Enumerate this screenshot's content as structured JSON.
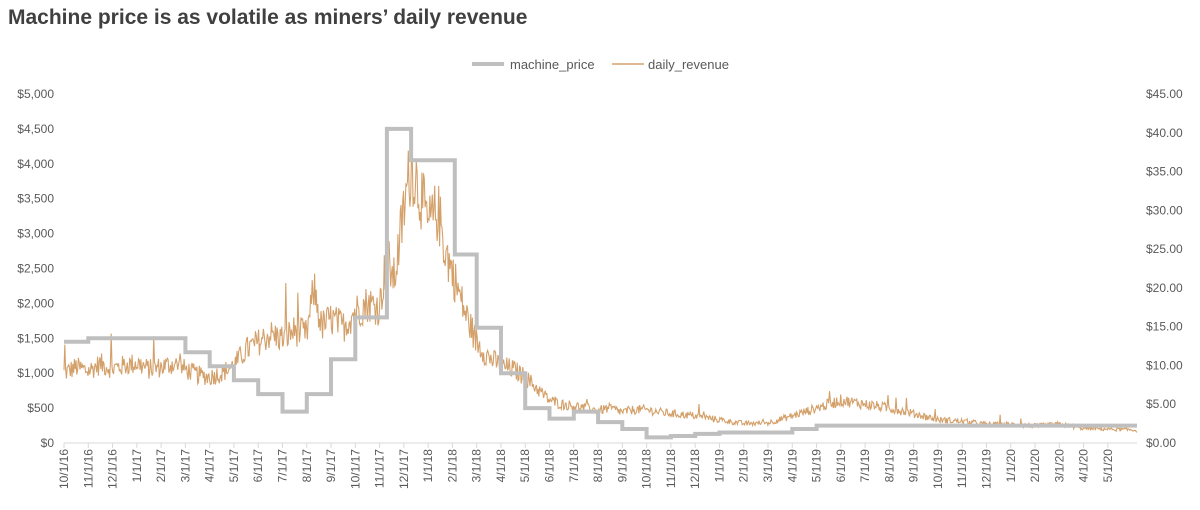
{
  "chart_data": {
    "type": "line",
    "title": "Machine price is as volatile as miners’ daily revenue",
    "legend_position": "top-center",
    "y_left": {
      "ylim": [
        0,
        5000
      ],
      "ticks": [
        0,
        500,
        1000,
        1500,
        2000,
        2500,
        3000,
        3500,
        4000,
        4500,
        5000
      ],
      "tick_labels": [
        "$0",
        "$500",
        "$1,000",
        "$1,500",
        "$2,000",
        "$2,500",
        "$3,000",
        "$3,500",
        "$4,000",
        "$4,500",
        "$5,000"
      ]
    },
    "y_right": {
      "ylim": [
        0,
        45
      ],
      "ticks": [
        0,
        5,
        10,
        15,
        20,
        25,
        30,
        35,
        40,
        45
      ],
      "tick_labels": [
        "$0.00",
        "$5.00",
        "$10.00",
        "$15.00",
        "$20.00",
        "$25.00",
        "$30.00",
        "$35.00",
        "$40.00",
        "$45.00"
      ]
    },
    "x_tick_labels": [
      "10/1/16",
      "11/1/16",
      "12/1/16",
      "1/1/17",
      "2/1/17",
      "3/1/17",
      "4/1/17",
      "5/1/17",
      "6/1/17",
      "7/1/17",
      "8/1/17",
      "9/1/17",
      "10/1/17",
      "11/1/17",
      "12/1/17",
      "1/1/18",
      "2/1/18",
      "3/1/18",
      "4/1/18",
      "5/1/18",
      "6/1/18",
      "7/1/18",
      "8/1/18",
      "9/1/18",
      "10/1/18",
      "11/1/18",
      "12/1/18",
      "1/1/19",
      "2/1/19",
      "3/1/19",
      "4/1/19",
      "5/1/19",
      "6/1/19",
      "7/1/19",
      "8/1/19",
      "9/1/19",
      "10/1/19",
      "11/1/19",
      "12/1/19",
      "1/1/20",
      "2/1/20",
      "3/1/20",
      "4/1/20",
      "5/1/20"
    ],
    "x_range_months": [
      0,
      44.2
    ],
    "series": [
      {
        "name": "machine_price",
        "axis": "left",
        "color": "#bfbfbf",
        "step": true,
        "points": [
          [
            0,
            1450
          ],
          [
            1,
            1500
          ],
          [
            5,
            1300
          ],
          [
            6,
            1100
          ],
          [
            7,
            900
          ],
          [
            8,
            700
          ],
          [
            9,
            450
          ],
          [
            10,
            700
          ],
          [
            11,
            1200
          ],
          [
            12,
            1800
          ],
          [
            13.3,
            4500
          ],
          [
            14.3,
            4050
          ],
          [
            16.1,
            2700
          ],
          [
            17,
            1650
          ],
          [
            18,
            1000
          ],
          [
            19,
            500
          ],
          [
            20,
            350
          ],
          [
            21,
            450
          ],
          [
            22,
            300
          ],
          [
            23,
            200
          ],
          [
            24,
            80
          ],
          [
            25,
            100
          ],
          [
            26,
            130
          ],
          [
            27,
            150
          ],
          [
            29,
            150
          ],
          [
            30,
            200
          ],
          [
            31,
            250
          ],
          [
            44.2,
            250
          ]
        ]
      },
      {
        "name": "daily_revenue",
        "axis": "right",
        "color": "#d4a06a",
        "points": [
          [
            0,
            9
          ],
          [
            0.5,
            9.8
          ],
          [
            1,
            9.3
          ],
          [
            1.5,
            10.2
          ],
          [
            2,
            9.6
          ],
          [
            2.5,
            10
          ],
          [
            3,
            10.3
          ],
          [
            3.5,
            9.5
          ],
          [
            4,
            9.8
          ],
          [
            4.5,
            10.2
          ],
          [
            5,
            9.5
          ],
          [
            5.5,
            8.8
          ],
          [
            6,
            8.5
          ],
          [
            6.5,
            9
          ],
          [
            7,
            10
          ],
          [
            7.5,
            12
          ],
          [
            8,
            13
          ],
          [
            8.5,
            14
          ],
          [
            9,
            13.5
          ],
          [
            9.5,
            14.5
          ],
          [
            10,
            14
          ],
          [
            10.3,
            20
          ],
          [
            10.6,
            15
          ],
          [
            11,
            16
          ],
          [
            11.5,
            15
          ],
          [
            12,
            17
          ],
          [
            12.5,
            18
          ],
          [
            13,
            17.5
          ],
          [
            13.3,
            24
          ],
          [
            13.6,
            21
          ],
          [
            14,
            30
          ],
          [
            14.3,
            36
          ],
          [
            14.7,
            32
          ],
          [
            15,
            28
          ],
          [
            15.4,
            30
          ],
          [
            15.7,
            25
          ],
          [
            16,
            22
          ],
          [
            16.5,
            17
          ],
          [
            17,
            13
          ],
          [
            17.5,
            11
          ],
          [
            18,
            10
          ],
          [
            18.5,
            9.5
          ],
          [
            19,
            8.5
          ],
          [
            19.5,
            7
          ],
          [
            20,
            5.5
          ],
          [
            20.5,
            5
          ],
          [
            21,
            4.8
          ],
          [
            21.5,
            4.5
          ],
          [
            22,
            4.2
          ],
          [
            22.5,
            4.5
          ],
          [
            23,
            4
          ],
          [
            23.5,
            4.3
          ],
          [
            24,
            4.3
          ],
          [
            24.5,
            4
          ],
          [
            25,
            3.8
          ],
          [
            26,
            3.5
          ],
          [
            27,
            3
          ],
          [
            28,
            2.5
          ],
          [
            29,
            2.6
          ],
          [
            30,
            3.5
          ],
          [
            31,
            4.5
          ],
          [
            32,
            5.5
          ],
          [
            33,
            5
          ],
          [
            34,
            4.5
          ],
          [
            35,
            3.8
          ],
          [
            36,
            3
          ],
          [
            37,
            2.8
          ],
          [
            38,
            2.4
          ],
          [
            39,
            2.4
          ],
          [
            40,
            2.2
          ],
          [
            41,
            2.4
          ],
          [
            42,
            1.9
          ],
          [
            43,
            1.8
          ],
          [
            44,
            1.7
          ],
          [
            44.2,
            1.6
          ]
        ]
      }
    ]
  }
}
